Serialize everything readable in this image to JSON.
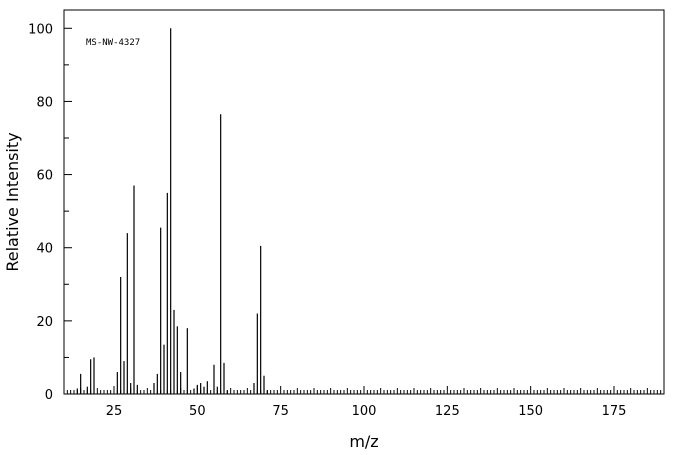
{
  "chart_data": {
    "type": "bar",
    "annotation": "MS-NW-4327",
    "xlabel": "m/z",
    "ylabel": "Relative Intensity",
    "xlim": [
      10,
      190
    ],
    "ylim": [
      0,
      105
    ],
    "xticks": [
      25,
      50,
      75,
      100,
      125,
      150,
      175
    ],
    "yticks": [
      0,
      20,
      40,
      60,
      80,
      100
    ],
    "grid": false,
    "peaks": [
      {
        "mz": 14,
        "intensity": 1.5
      },
      {
        "mz": 15,
        "intensity": 5.5
      },
      {
        "mz": 17,
        "intensity": 2
      },
      {
        "mz": 18,
        "intensity": 9.5
      },
      {
        "mz": 19,
        "intensity": 10
      },
      {
        "mz": 26,
        "intensity": 6
      },
      {
        "mz": 27,
        "intensity": 32
      },
      {
        "mz": 28,
        "intensity": 9
      },
      {
        "mz": 29,
        "intensity": 44
      },
      {
        "mz": 30,
        "intensity": 3
      },
      {
        "mz": 31,
        "intensity": 57
      },
      {
        "mz": 32,
        "intensity": 2.5
      },
      {
        "mz": 37,
        "intensity": 3
      },
      {
        "mz": 38,
        "intensity": 5.5
      },
      {
        "mz": 39,
        "intensity": 45.5
      },
      {
        "mz": 40,
        "intensity": 13.5
      },
      {
        "mz": 41,
        "intensity": 55
      },
      {
        "mz": 42,
        "intensity": 100
      },
      {
        "mz": 43,
        "intensity": 23
      },
      {
        "mz": 44,
        "intensity": 18.5
      },
      {
        "mz": 45,
        "intensity": 6
      },
      {
        "mz": 47,
        "intensity": 18
      },
      {
        "mz": 49,
        "intensity": 1.5
      },
      {
        "mz": 50,
        "intensity": 2.5
      },
      {
        "mz": 51,
        "intensity": 3
      },
      {
        "mz": 52,
        "intensity": 2
      },
      {
        "mz": 53,
        "intensity": 3.5
      },
      {
        "mz": 55,
        "intensity": 8
      },
      {
        "mz": 56,
        "intensity": 2
      },
      {
        "mz": 57,
        "intensity": 76.5
      },
      {
        "mz": 58,
        "intensity": 8.5
      },
      {
        "mz": 59,
        "intensity": 1
      },
      {
        "mz": 67,
        "intensity": 3
      },
      {
        "mz": 68,
        "intensity": 22
      },
      {
        "mz": 69,
        "intensity": 40.5
      },
      {
        "mz": 70,
        "intensity": 5
      },
      {
        "mz": 71,
        "intensity": 1
      }
    ]
  }
}
